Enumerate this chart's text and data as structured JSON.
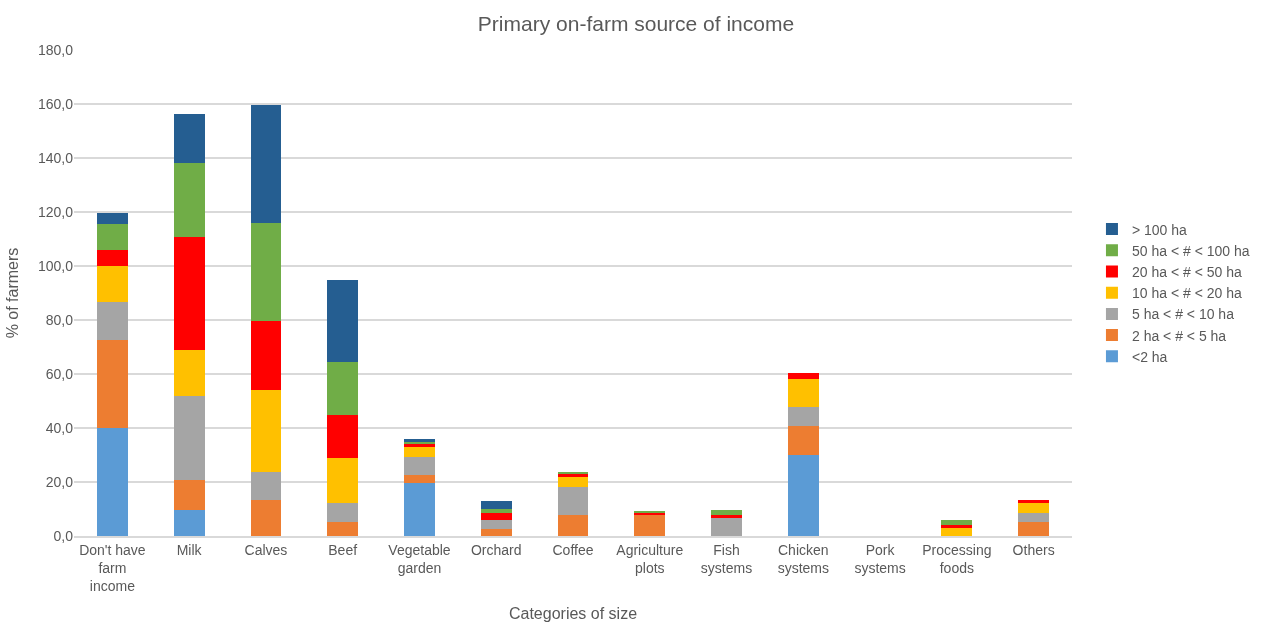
{
  "chart_data": {
    "type": "bar",
    "stacked": true,
    "title": "Primary on-farm source of income",
    "xlabel": "Categories of size",
    "ylabel": "% of farmers",
    "categories": [
      "Don't have farm income",
      "Milk",
      "Calves",
      "Beef",
      "Vegetable garden",
      "Orchard",
      "Coffee",
      "Agriculture plots",
      "Fish systems",
      "Chicken systems",
      "Pork systems",
      "Processing foods",
      "Others"
    ],
    "series": [
      {
        "name": "<2 ha",
        "color": "#5b9bd5",
        "values": [
          40.0,
          9.8,
          0,
          0,
          19.7,
          0,
          0,
          0,
          0,
          30.0,
          0,
          0,
          0
        ]
      },
      {
        "name": "2 ha < # < 5 ha",
        "color": "#ed7d31",
        "values": [
          32.5,
          10.8,
          13.4,
          5.2,
          2.9,
          2.5,
          7.8,
          7.7,
          0,
          10.8,
          0,
          0,
          5.3
        ]
      },
      {
        "name": "5 ha < # < 10 ha",
        "color": "#a5a5a5",
        "values": [
          14.1,
          31.3,
          10.3,
          6.9,
          6.7,
          3.4,
          10.4,
          0,
          6.6,
          7.0,
          0,
          0,
          3.4
        ]
      },
      {
        "name": "10 ha < # < 20 ha",
        "color": "#ffc000",
        "values": [
          13.5,
          16.9,
          30.4,
          16.9,
          3.5,
          0,
          3.6,
          0,
          0,
          10.5,
          0,
          3.2,
          3.4
        ]
      },
      {
        "name": "20 ha < # < 50 ha",
        "color": "#ff0000",
        "values": [
          5.8,
          41.8,
          25.6,
          16.0,
          1.6,
          2.7,
          1.1,
          0.9,
          1.3,
          2.0,
          0,
          0.7,
          1.3
        ]
      },
      {
        "name": "50 ha < # < 100 ha",
        "color": "#70ad47",
        "values": [
          9.6,
          27.7,
          36.2,
          19.5,
          0.6,
          1.5,
          0.8,
          0.8,
          1.6,
          0,
          0,
          2.2,
          0
        ]
      },
      {
        "name": "> 100 ha",
        "color": "#255e91",
        "values": [
          4.2,
          18.1,
          43.9,
          30.5,
          0.9,
          2.7,
          0,
          0,
          0,
          0,
          0,
          0,
          0
        ]
      }
    ],
    "ylim": [
      0,
      180
    ],
    "yticks": [
      {
        "value": 0,
        "label": "0,0"
      },
      {
        "value": 20,
        "label": "20,0"
      },
      {
        "value": 40,
        "label": "40,0"
      },
      {
        "value": 60,
        "label": "60,0"
      },
      {
        "value": 80,
        "label": "80,0"
      },
      {
        "value": 100,
        "label": "100,0"
      },
      {
        "value": 120,
        "label": "120,0"
      },
      {
        "value": 140,
        "label": "140,0"
      },
      {
        "value": 160,
        "label": "160,0"
      },
      {
        "value": 180,
        "label": "180,0"
      }
    ],
    "grid": "y",
    "legend": "right"
  }
}
